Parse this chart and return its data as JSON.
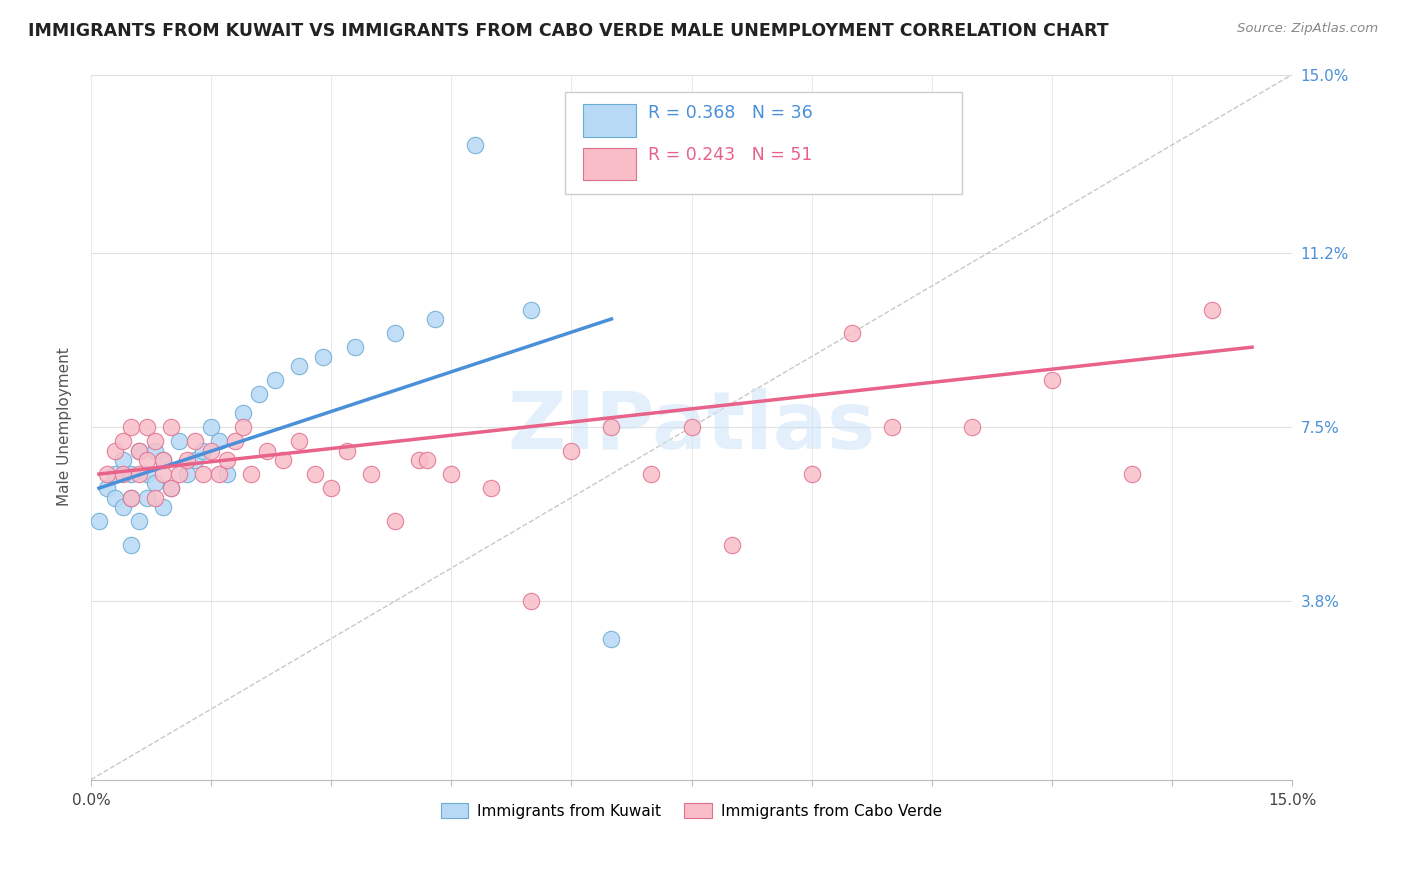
{
  "title": "IMMIGRANTS FROM KUWAIT VS IMMIGRANTS FROM CABO VERDE MALE UNEMPLOYMENT CORRELATION CHART",
  "source": "Source: ZipAtlas.com",
  "ylabel": "Male Unemployment",
  "xlim": [
    0.0,
    0.15
  ],
  "ylim": [
    0.0,
    0.15
  ],
  "ytick_values": [
    0.038,
    0.075,
    0.112,
    0.15
  ],
  "ytick_labels": [
    "3.8%",
    "7.5%",
    "11.2%",
    "15.0%"
  ],
  "kuwait_color_fill": "#b8d9f5",
  "kuwait_color_edge": "#6aabd2",
  "cabo_color_fill": "#f9bdc8",
  "cabo_color_edge": "#e07090",
  "kuwait_line_color": "#4a90d9",
  "cabo_line_color": "#e8628a",
  "diagonal_color": "#bbbbbb",
  "watermark": "ZIPatlas",
  "watermark_color": "#ddeeff",
  "grid_color": "#e0e0e0",
  "n_kuwait": 36,
  "n_cabo": 51,
  "kuwait_scatter_x": [
    0.001,
    0.002,
    0.003,
    0.003,
    0.004,
    0.004,
    0.005,
    0.005,
    0.005,
    0.006,
    0.006,
    0.007,
    0.007,
    0.008,
    0.008,
    0.009,
    0.009,
    0.01,
    0.011,
    0.012,
    0.013,
    0.014,
    0.015,
    0.016,
    0.017,
    0.019,
    0.021,
    0.023,
    0.026,
    0.029,
    0.033,
    0.038,
    0.043,
    0.048,
    0.055,
    0.065
  ],
  "kuwait_scatter_y": [
    0.055,
    0.062,
    0.06,
    0.065,
    0.058,
    0.068,
    0.05,
    0.06,
    0.065,
    0.055,
    0.07,
    0.06,
    0.065,
    0.063,
    0.07,
    0.058,
    0.068,
    0.062,
    0.072,
    0.065,
    0.068,
    0.07,
    0.075,
    0.072,
    0.065,
    0.078,
    0.082,
    0.085,
    0.088,
    0.09,
    0.092,
    0.095,
    0.098,
    0.135,
    0.1,
    0.03
  ],
  "cabo_scatter_x": [
    0.002,
    0.003,
    0.004,
    0.004,
    0.005,
    0.005,
    0.006,
    0.006,
    0.007,
    0.007,
    0.008,
    0.008,
    0.009,
    0.009,
    0.01,
    0.01,
    0.011,
    0.012,
    0.013,
    0.014,
    0.015,
    0.016,
    0.017,
    0.018,
    0.019,
    0.02,
    0.022,
    0.024,
    0.026,
    0.028,
    0.03,
    0.032,
    0.035,
    0.038,
    0.041,
    0.045,
    0.05,
    0.055,
    0.06,
    0.065,
    0.07,
    0.075,
    0.08,
    0.09,
    0.095,
    0.1,
    0.11,
    0.12,
    0.13,
    0.14,
    0.042
  ],
  "cabo_scatter_y": [
    0.065,
    0.07,
    0.065,
    0.072,
    0.06,
    0.075,
    0.065,
    0.07,
    0.068,
    0.075,
    0.06,
    0.072,
    0.065,
    0.068,
    0.062,
    0.075,
    0.065,
    0.068,
    0.072,
    0.065,
    0.07,
    0.065,
    0.068,
    0.072,
    0.075,
    0.065,
    0.07,
    0.068,
    0.072,
    0.065,
    0.062,
    0.07,
    0.065,
    0.055,
    0.068,
    0.065,
    0.062,
    0.038,
    0.07,
    0.075,
    0.065,
    0.075,
    0.05,
    0.065,
    0.095,
    0.075,
    0.075,
    0.085,
    0.065,
    0.1,
    0.068
  ],
  "kuwait_line_x": [
    0.001,
    0.065
  ],
  "kuwait_line_y_start": 0.062,
  "kuwait_line_y_end": 0.098,
  "cabo_line_x": [
    0.001,
    0.145
  ],
  "cabo_line_y_start": 0.065,
  "cabo_line_y_end": 0.092
}
